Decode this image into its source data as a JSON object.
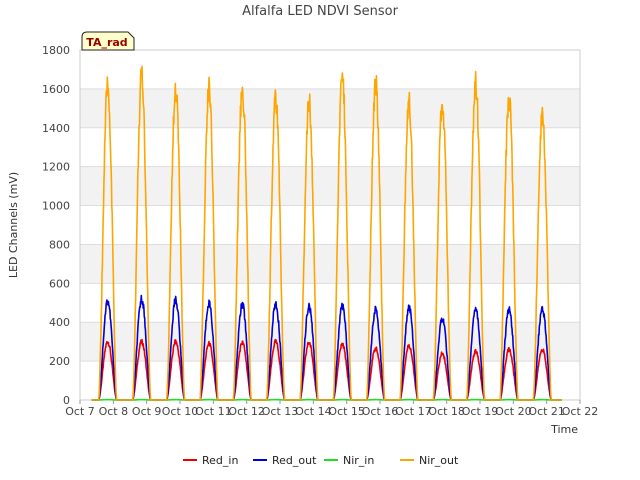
{
  "chart_data": {
    "type": "line",
    "title": "Alfalfa LED NDVI Sensor",
    "xlabel": "Time",
    "ylabel": "LED Channels (mV)",
    "badge": "TA_rad",
    "xlim": [
      7,
      22
    ],
    "ylim": [
      0,
      1800
    ],
    "x_ticks": [
      {
        "value": 7,
        "label": "Oct 7"
      },
      {
        "value": 8,
        "label": "Oct 8"
      },
      {
        "value": 9,
        "label": "Oct 9"
      },
      {
        "value": 10,
        "label": "Oct 10"
      },
      {
        "value": 11,
        "label": "Oct 11"
      },
      {
        "value": 12,
        "label": "Oct 12"
      },
      {
        "value": 13,
        "label": "Oct 13"
      },
      {
        "value": 14,
        "label": "Oct 14"
      },
      {
        "value": 15,
        "label": "Oct 15"
      },
      {
        "value": 16,
        "label": "Oct 16"
      },
      {
        "value": 17,
        "label": "Oct 17"
      },
      {
        "value": 18,
        "label": "Oct 18"
      },
      {
        "value": 19,
        "label": "Oct 19"
      },
      {
        "value": 20,
        "label": "Oct 20"
      },
      {
        "value": 21,
        "label": "Oct 21"
      },
      {
        "value": 22,
        "label": "Oct 22"
      }
    ],
    "y_ticks": [
      0,
      200,
      400,
      600,
      800,
      1000,
      1200,
      1400,
      1600,
      1800
    ],
    "x_range_data": [
      7.35,
      21.45
    ],
    "day_centers": [
      7.83,
      8.85,
      9.87,
      10.87,
      11.87,
      12.87,
      13.87,
      14.87,
      15.87,
      16.87,
      17.87,
      18.87,
      19.87,
      20.87
    ],
    "day_half_width": 0.27,
    "series": [
      {
        "name": "Red_in",
        "color": "#ee0000",
        "peaks": [
          300,
          300,
          300,
          290,
          295,
          300,
          295,
          285,
          265,
          280,
          240,
          250,
          260,
          260
        ]
      },
      {
        "name": "Red_out",
        "color": "#0000dd",
        "peaks": [
          510,
          520,
          515,
          500,
          490,
          495,
          480,
          480,
          465,
          475,
          420,
          470,
          465,
          470
        ]
      },
      {
        "name": "Nir_in",
        "color": "#22dd22",
        "peaks": [
          2,
          2,
          2,
          2,
          2,
          2,
          2,
          2,
          2,
          2,
          2,
          2,
          2,
          2
        ]
      },
      {
        "name": "Nir_out",
        "color": "#ffa500",
        "peaks": [
          1610,
          1660,
          1605,
          1615,
          1605,
          1550,
          1535,
          1665,
          1640,
          1535,
          1535,
          1630,
          1550,
          1475
        ]
      }
    ]
  }
}
